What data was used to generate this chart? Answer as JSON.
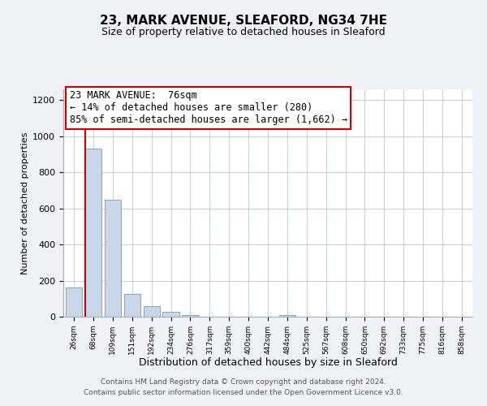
{
  "title": "23, MARK AVENUE, SLEAFORD, NG34 7HE",
  "subtitle": "Size of property relative to detached houses in Sleaford",
  "xlabel": "Distribution of detached houses by size in Sleaford",
  "ylabel": "Number of detached properties",
  "bar_labels": [
    "26sqm",
    "68sqm",
    "109sqm",
    "151sqm",
    "192sqm",
    "234sqm",
    "276sqm",
    "317sqm",
    "359sqm",
    "400sqm",
    "442sqm",
    "484sqm",
    "525sqm",
    "567sqm",
    "608sqm",
    "650sqm",
    "692sqm",
    "733sqm",
    "775sqm",
    "816sqm",
    "858sqm"
  ],
  "bar_heights": [
    160,
    930,
    650,
    125,
    60,
    28,
    10,
    0,
    0,
    0,
    0,
    10,
    0,
    0,
    0,
    0,
    0,
    0,
    0,
    0,
    0
  ],
  "bar_color": "#c8d8ea",
  "bar_edgecolor": "#7aaabb",
  "ylim": [
    0,
    1260
  ],
  "yticks": [
    0,
    200,
    400,
    600,
    800,
    1000,
    1200
  ],
  "annotation_line1": "23 MARK AVENUE:  76sqm",
  "annotation_line2": "← 14% of detached houses are smaller (280)",
  "annotation_line3": "85% of semi-detached houses are larger (1,662) →",
  "annotation_box_edgecolor": "#cc0000",
  "vline_color": "#cc0000",
  "footer_line1": "Contains HM Land Registry data © Crown copyright and database right 2024.",
  "footer_line2": "Contains public sector information licensed under the Open Government Licence v3.0.",
  "background_color": "#eef2f7",
  "plot_bg_color": "#ffffff",
  "grid_color": "#c8d0de",
  "title_fontsize": 11,
  "subtitle_fontsize": 9,
  "annotation_fontsize": 8.5,
  "footer_fontsize": 6.5,
  "ylabel_fontsize": 8,
  "xlabel_fontsize": 9
}
